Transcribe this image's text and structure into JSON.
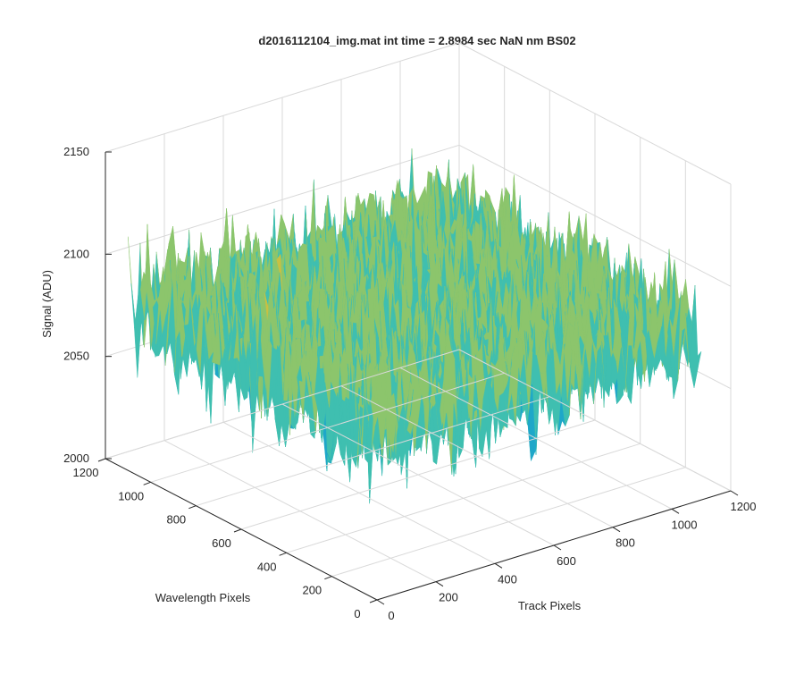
{
  "chart_data": {
    "type": "surface",
    "title": "d2016112104_img.mat int time = 2.8984 sec  NaN nm BS02",
    "xlabel": "Track Pixels",
    "ylabel": "Wavelength Pixels",
    "zlabel": "Signal (ADU)",
    "xlim": [
      0,
      1200
    ],
    "ylim": [
      0,
      1200
    ],
    "zlim": [
      2000,
      2150
    ],
    "x_ticks": [
      "0",
      "200",
      "400",
      "600",
      "800",
      "1000",
      "1200"
    ],
    "y_ticks": [
      "0",
      "200",
      "400",
      "600",
      "800",
      "1000",
      "1200"
    ],
    "z_ticks": [
      "2000",
      "2050",
      "2100",
      "2150"
    ],
    "x_tick_values": [
      0,
      200,
      400,
      600,
      800,
      1000,
      1200
    ],
    "y_tick_values": [
      0,
      200,
      400,
      600,
      800,
      1000,
      1200
    ],
    "z_tick_values": [
      2000,
      2050,
      2100,
      2150
    ],
    "data_x_range": [
      0,
      1100
    ],
    "data_y_range": [
      0,
      1100
    ],
    "signal_mean": 2080,
    "signal_noise_std": 15,
    "signal_min": 2025,
    "signal_max": 2140,
    "colormap": [
      "#0072bd",
      "#1ea7c9",
      "#3fbfb0",
      "#8cc56c",
      "#c8c043",
      "#edc341"
    ],
    "grid": true
  }
}
